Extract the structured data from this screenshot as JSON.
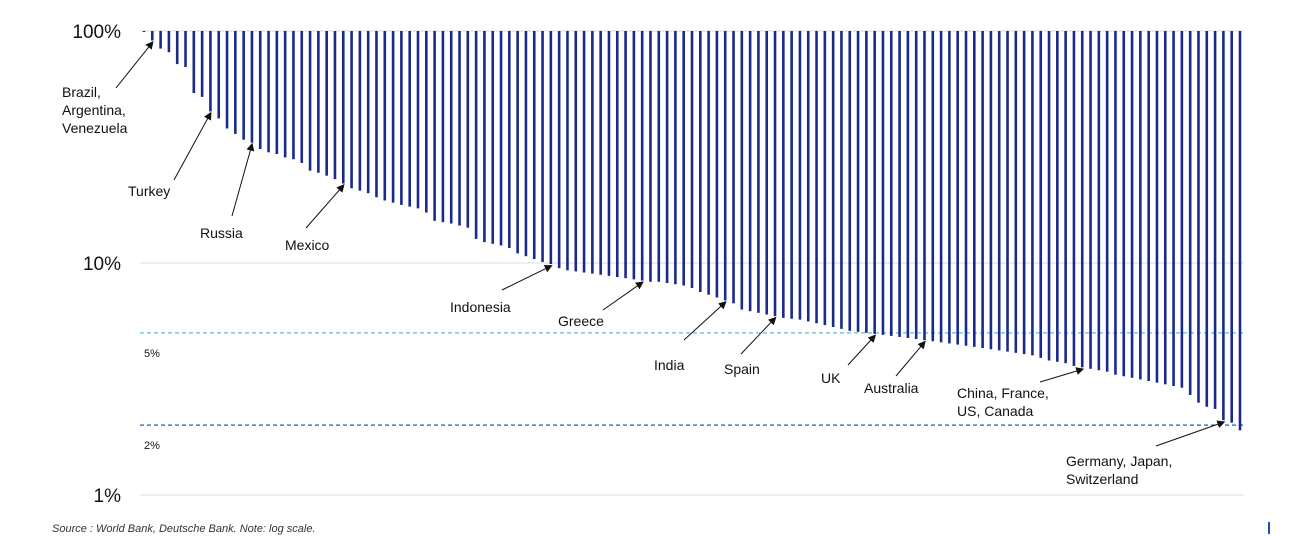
{
  "chart_data": {
    "type": "bar",
    "log_scale": true,
    "ylim": [
      "1%",
      "100%"
    ],
    "y_ticks": [
      {
        "label": "100%",
        "value": 100
      },
      {
        "label": "10%",
        "value": 10
      },
      {
        "label": "1%",
        "value": 1
      }
    ],
    "grid": true,
    "reference_lines": [
      {
        "label": "5%",
        "value": 5,
        "color": "#7fc3e3"
      },
      {
        "label": "2%",
        "value": 2,
        "color": "#3c7fbe"
      }
    ],
    "bar_color": "#1a2a8a",
    "values": [
      100,
      91,
      84,
      81,
      72,
      70,
      54,
      52,
      45,
      42,
      38,
      36,
      34,
      33,
      31,
      30,
      29.5,
      28.5,
      28,
      27,
      25,
      24.5,
      23.8,
      23,
      22,
      21,
      20.5,
      20,
      19.2,
      18.6,
      18.2,
      17.8,
      17.5,
      17.2,
      16.5,
      15.2,
      15,
      14.8,
      14.5,
      14.2,
      12.7,
      12.3,
      12.1,
      11.9,
      11.6,
      11,
      10.7,
      10.4,
      10.1,
      9.9,
      9.5,
      9.3,
      9.2,
      9.1,
      9,
      8.9,
      8.8,
      8.7,
      8.6,
      8.5,
      8.4,
      8.3,
      8.3,
      8.2,
      8.1,
      8,
      7.8,
      7.5,
      7.3,
      7.1,
      6.9,
      6.7,
      6.3,
      6.2,
      6.1,
      6,
      5.9,
      5.8,
      5.75,
      5.7,
      5.6,
      5.5,
      5.4,
      5.3,
      5.2,
      5.1,
      5.05,
      5,
      4.95,
      4.9,
      4.85,
      4.8,
      4.75,
      4.7,
      4.65,
      4.6,
      4.55,
      4.5,
      4.45,
      4.4,
      4.35,
      4.3,
      4.25,
      4.2,
      4.15,
      4.1,
      4.05,
      4,
      3.9,
      3.8,
      3.75,
      3.7,
      3.6,
      3.55,
      3.5,
      3.45,
      3.4,
      3.3,
      3.25,
      3.2,
      3.15,
      3.1,
      3.05,
      3,
      2.95,
      2.9,
      2.7,
      2.5,
      2.4,
      2.35,
      2.1,
      2.05,
      1.9
    ],
    "annotations": [
      {
        "lines": [
          "Brazil,",
          "Argentina,",
          "Venezuela"
        ],
        "bar": 1
      },
      {
        "lines": [
          "Turkey"
        ],
        "bar": 8
      },
      {
        "lines": [
          "Russia"
        ],
        "bar": 13
      },
      {
        "lines": [
          "Mexico"
        ],
        "bar": 24
      },
      {
        "lines": [
          "Indonesia"
        ],
        "bar": 49
      },
      {
        "lines": [
          "Greece"
        ],
        "bar": 60
      },
      {
        "lines": [
          "India"
        ],
        "bar": 70
      },
      {
        "lines": [
          "Spain"
        ],
        "bar": 76
      },
      {
        "lines": [
          "UK"
        ],
        "bar": 88
      },
      {
        "lines": [
          "Australia"
        ],
        "bar": 94
      },
      {
        "lines": [
          "China, France,",
          "US, Canada"
        ],
        "bar": 113
      },
      {
        "lines": [
          "Germany, Japan,",
          "Switzerland"
        ],
        "bar": 130
      }
    ]
  },
  "source": "Source : World Bank, Deutsche Bank. Note: log scale."
}
